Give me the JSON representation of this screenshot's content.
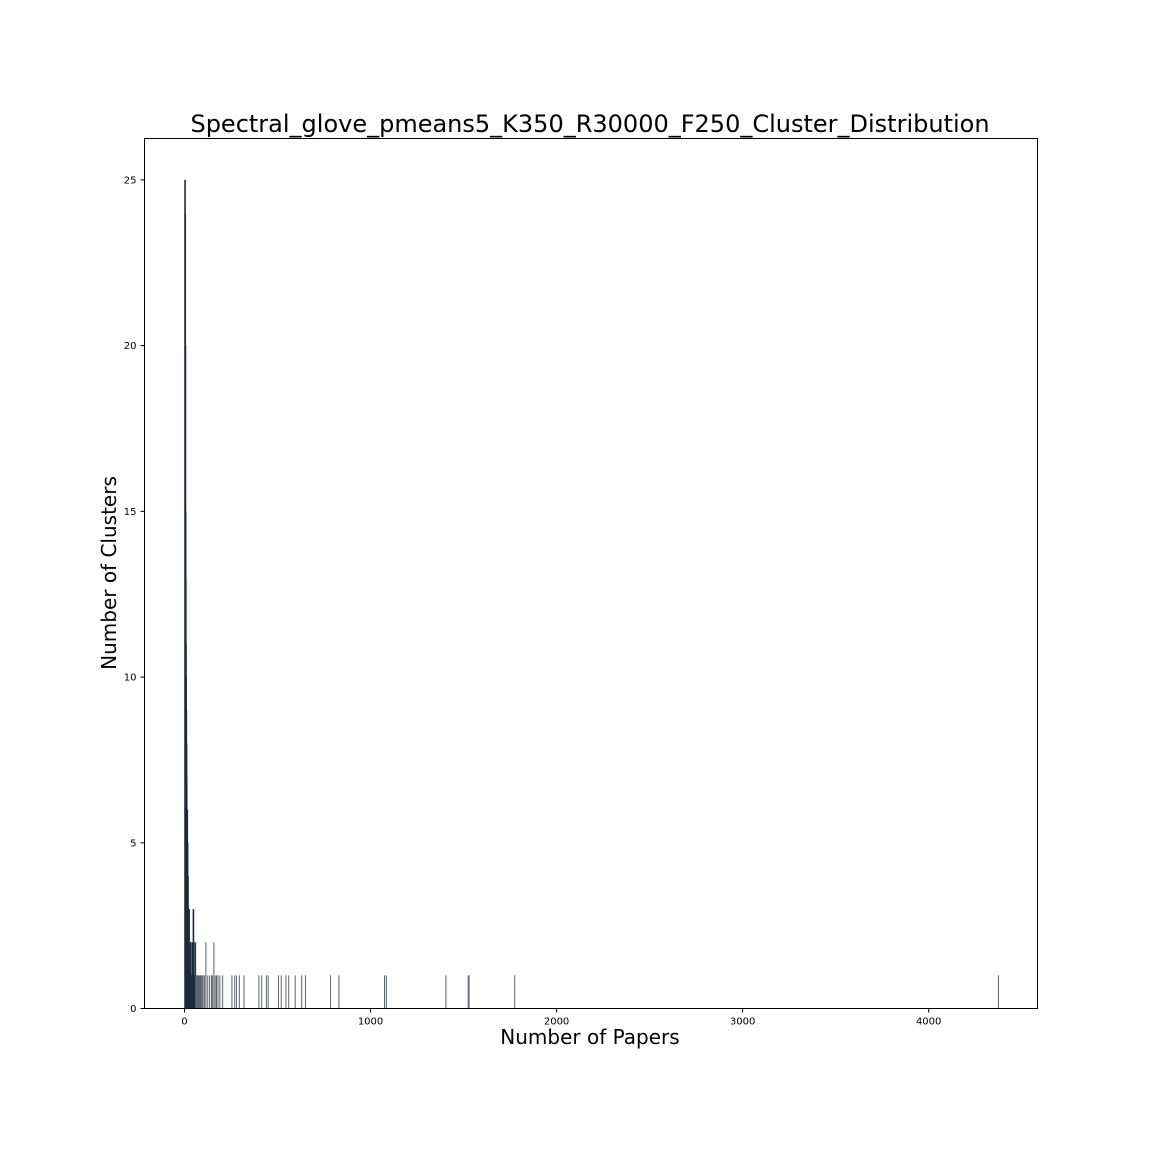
{
  "chart_data": {
    "type": "bar",
    "title": "Spectral_glove_pmeans5_K350_R30000_F250_Cluster_Distribution",
    "xlabel": "Number of Papers",
    "ylabel": "Number of Clusters",
    "xlim": [
      -215,
      4585
    ],
    "ylim": [
      0,
      26.25
    ],
    "xticks": [
      0,
      1000,
      2000,
      3000,
      4000
    ],
    "yticks": [
      0,
      5,
      10,
      15,
      20,
      25
    ],
    "grid": false,
    "bar_color": "#1c2b3a",
    "bar_edge_color": "#5a6470",
    "x": [
      3,
      4,
      5,
      6,
      7,
      8,
      9,
      10,
      11,
      12,
      13,
      14,
      15,
      16,
      17,
      18,
      19,
      20,
      21,
      22,
      23,
      24,
      25,
      26,
      27,
      28,
      29,
      30,
      32,
      34,
      36,
      38,
      40,
      42,
      45,
      48,
      50,
      52,
      55,
      58,
      60,
      63,
      66,
      70,
      74,
      78,
      82,
      86,
      90,
      95,
      100,
      108,
      115,
      125,
      135,
      145,
      150,
      158,
      165,
      172,
      180,
      190,
      205,
      255,
      270,
      280,
      295,
      320,
      400,
      415,
      440,
      450,
      505,
      520,
      545,
      560,
      595,
      630,
      650,
      785,
      830,
      1075,
      1085,
      1405,
      1525,
      1530,
      1775,
      4375
    ],
    "values": [
      25,
      24,
      20,
      15,
      13,
      11,
      10,
      9,
      8,
      7,
      6,
      5,
      6,
      4,
      5,
      3,
      4,
      3,
      2,
      3,
      2,
      2,
      3,
      1,
      2,
      1,
      2,
      1,
      2,
      1,
      1,
      1,
      1,
      2,
      1,
      3,
      1,
      1,
      1,
      2,
      1,
      1,
      1,
      1,
      1,
      1,
      1,
      1,
      1,
      1,
      1,
      1,
      2,
      1,
      1,
      1,
      1,
      2,
      1,
      1,
      1,
      1,
      1,
      1,
      1,
      1,
      1,
      1,
      1,
      1,
      1,
      1,
      1,
      1,
      1,
      1,
      1,
      1,
      1,
      1,
      1,
      1,
      1,
      1,
      1,
      1,
      1,
      1
    ]
  }
}
